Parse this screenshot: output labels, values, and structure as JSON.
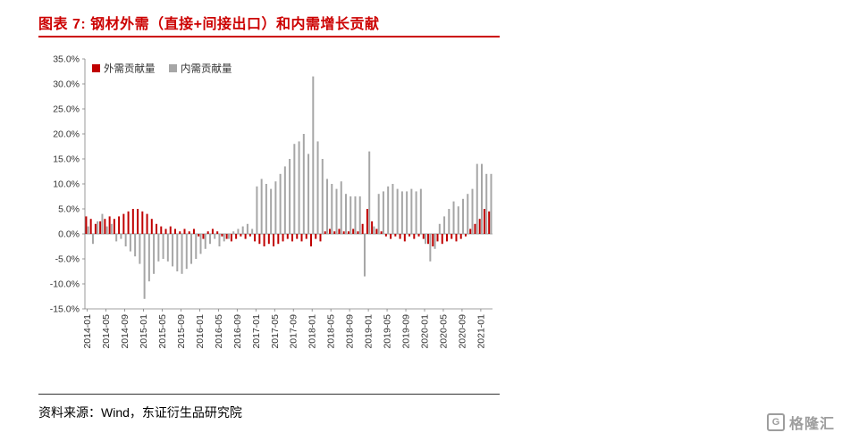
{
  "page": {
    "title": "图表 7: 钢材外需（直接+间接出口）和内需增长贡献",
    "source": "资料来源：Wind，东证衍生品研究院",
    "logo_text": "格隆汇",
    "accent_color": "#CC0000"
  },
  "chart_data": {
    "type": "bar",
    "title": "钢材外需（直接+间接出口）和内需增长贡献",
    "legend_position": "top-left",
    "grid": false,
    "ylabel": "",
    "xlabel": "",
    "ylim": [
      -15,
      35
    ],
    "ytick_step": 5,
    "ytick_format": "0.0%",
    "xtick_every": 4,
    "axis_color": "#808080",
    "label_color": "#333333",
    "categories": [
      "2014-01",
      "2014-02",
      "2014-03",
      "2014-04",
      "2014-05",
      "2014-06",
      "2014-07",
      "2014-08",
      "2014-09",
      "2014-10",
      "2014-11",
      "2014-12",
      "2015-01",
      "2015-02",
      "2015-03",
      "2015-04",
      "2015-05",
      "2015-06",
      "2015-07",
      "2015-08",
      "2015-09",
      "2015-10",
      "2015-11",
      "2015-12",
      "2016-01",
      "2016-02",
      "2016-03",
      "2016-04",
      "2016-05",
      "2016-06",
      "2016-07",
      "2016-08",
      "2016-09",
      "2016-10",
      "2016-11",
      "2016-12",
      "2017-01",
      "2017-02",
      "2017-03",
      "2017-04",
      "2017-05",
      "2017-06",
      "2017-07",
      "2017-08",
      "2017-09",
      "2017-10",
      "2017-11",
      "2017-12",
      "2018-01",
      "2018-02",
      "2018-03",
      "2018-04",
      "2018-05",
      "2018-06",
      "2018-07",
      "2018-08",
      "2018-09",
      "2018-10",
      "2018-11",
      "2018-12",
      "2019-01",
      "2019-02",
      "2019-03",
      "2019-04",
      "2019-05",
      "2019-06",
      "2019-07",
      "2019-08",
      "2019-09",
      "2019-10",
      "2019-11",
      "2019-12",
      "2020-01",
      "2020-02",
      "2020-03",
      "2020-04",
      "2020-05",
      "2020-06",
      "2020-07",
      "2020-08",
      "2020-09",
      "2020-10",
      "2020-11",
      "2020-12",
      "2021-01",
      "2021-02",
      "2021-03"
    ],
    "series": [
      {
        "name": "外需贡献量",
        "color": "#C00000",
        "values": [
          3.5,
          3.0,
          2.0,
          2.5,
          3.0,
          3.5,
          3.0,
          3.5,
          4.0,
          4.5,
          5.0,
          5.0,
          4.5,
          4.0,
          3.0,
          2.0,
          1.5,
          1.0,
          1.5,
          1.0,
          0.5,
          1.0,
          0.5,
          1.0,
          -0.5,
          -1.0,
          0.5,
          1.0,
          0.5,
          -0.5,
          -1.0,
          -1.5,
          -1.0,
          -0.5,
          -1.0,
          -0.5,
          -1.5,
          -2.0,
          -2.5,
          -2.0,
          -2.5,
          -2.0,
          -1.5,
          -1.0,
          -1.5,
          -1.0,
          -1.5,
          -1.0,
          -2.5,
          -1.0,
          -1.5,
          0.5,
          1.0,
          0.5,
          1.0,
          0.5,
          0.5,
          1.0,
          0.5,
          2.0,
          5.0,
          2.5,
          1.0,
          0.5,
          -0.5,
          -1.0,
          -0.5,
          -1.0,
          -1.5,
          -0.5,
          -1.0,
          -0.5,
          -1.0,
          -2.0,
          -2.5,
          -1.5,
          -2.0,
          -1.5,
          -1.0,
          -1.5,
          -1.0,
          -0.5,
          1.0,
          2.0,
          3.0,
          5.0,
          4.5
        ]
      },
      {
        "name": "内需贡献量",
        "color": "#A6A6A6",
        "values": [
          1.5,
          -2.0,
          2.5,
          4.0,
          1.5,
          2.0,
          -1.5,
          -1.0,
          -2.5,
          -3.5,
          -4.5,
          -6.0,
          -13.0,
          -9.5,
          -8.0,
          -5.5,
          -5.0,
          -5.5,
          -6.5,
          -7.5,
          -8.0,
          -7.0,
          -6.0,
          -5.0,
          -4.0,
          -3.0,
          -2.0,
          -1.0,
          -2.5,
          -1.5,
          -1.0,
          0.5,
          1.0,
          1.5,
          2.0,
          1.0,
          9.5,
          11.0,
          10.0,
          9.0,
          10.5,
          12.0,
          13.5,
          15.0,
          18.0,
          18.5,
          20.0,
          16.0,
          31.5,
          18.5,
          15.0,
          11.0,
          10.0,
          9.0,
          10.5,
          8.0,
          7.5,
          7.5,
          7.5,
          -8.5,
          16.5,
          1.5,
          8.0,
          8.5,
          9.5,
          10.0,
          9.0,
          8.5,
          8.5,
          9.0,
          8.5,
          9.0,
          -2.0,
          -5.5,
          -3.0,
          2.0,
          3.5,
          5.0,
          6.5,
          5.5,
          7.0,
          8.0,
          9.0,
          14.0,
          14.0,
          12.0,
          12.0
        ]
      }
    ]
  }
}
